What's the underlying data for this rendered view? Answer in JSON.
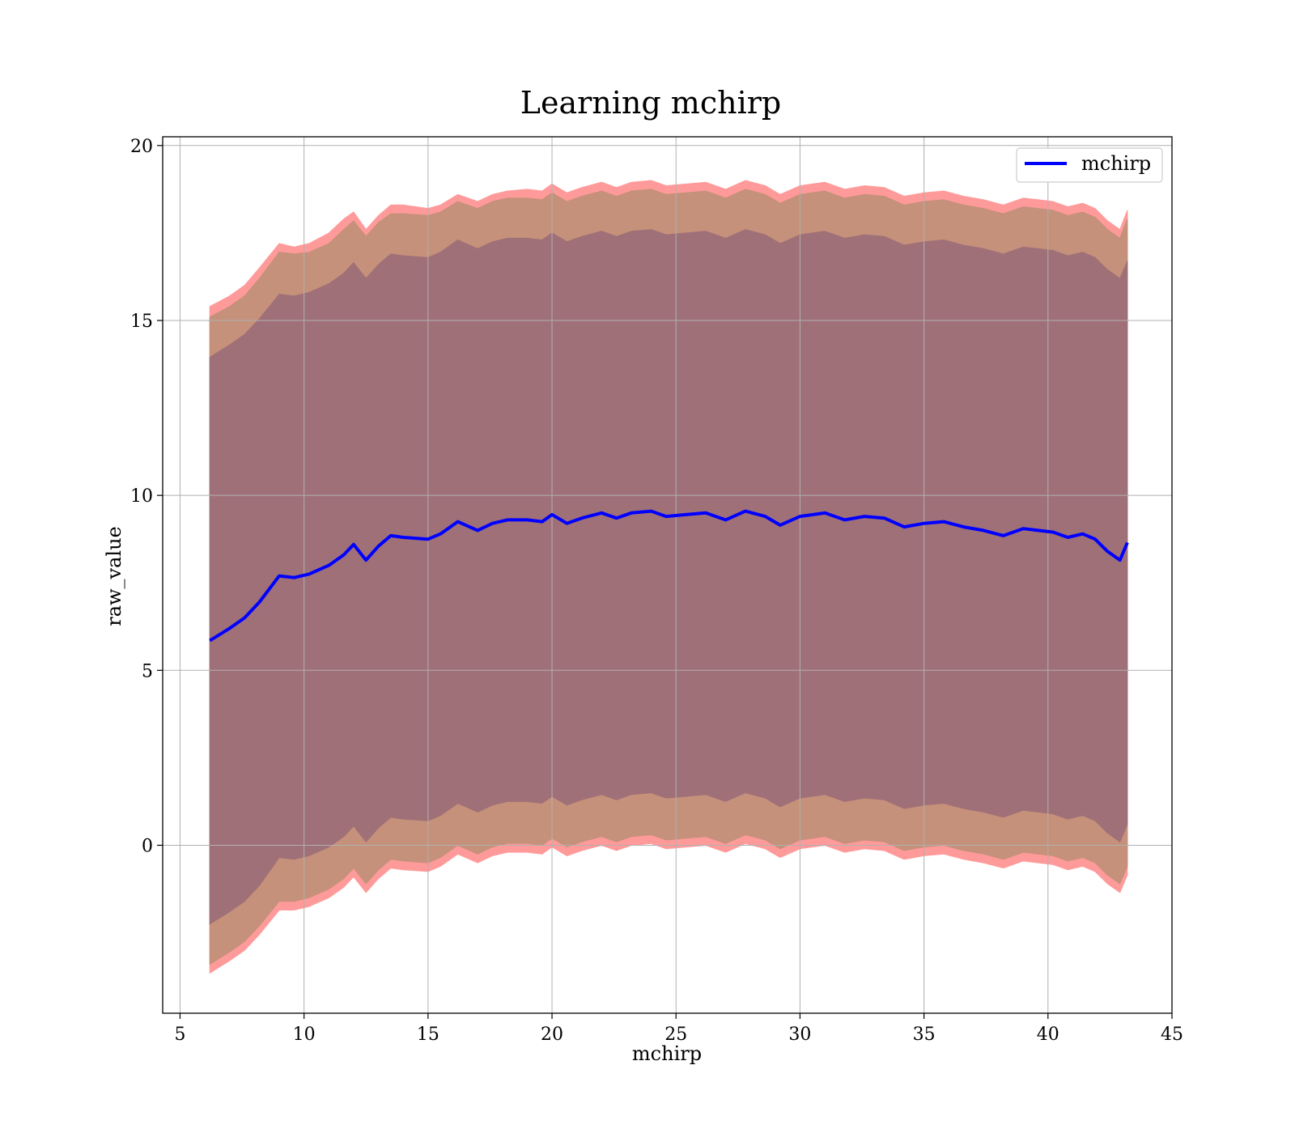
{
  "chart_data": {
    "type": "area",
    "title": "Learning mchirp",
    "xlabel": "mchirp",
    "ylabel": "raw_value",
    "xlim": [
      4.3,
      45
    ],
    "ylim": [
      -4.8,
      20.25
    ],
    "xticks": [
      5,
      10,
      15,
      20,
      25,
      30,
      35,
      40,
      45
    ],
    "yticks": [
      0,
      5,
      10,
      15,
      20
    ],
    "grid": true,
    "legend_position": "top-right",
    "colors": {
      "mean_line": "#0000ff",
      "band_outer": "#ff9a9a",
      "band_middle": "#c5917a",
      "band_inner": "#a07078"
    },
    "series": [
      {
        "name": "mchirp",
        "role": "mean",
        "x": [
          6.2,
          7.0,
          7.6,
          8.2,
          9.0,
          9.6,
          10.2,
          11.0,
          11.6,
          12.0,
          12.5,
          13.0,
          13.5,
          14.0,
          15.0,
          15.5,
          16.2,
          17.0,
          17.6,
          18.2,
          19.0,
          19.6,
          20.0,
          20.6,
          21.2,
          22.0,
          22.6,
          23.2,
          24.0,
          24.6,
          25.4,
          26.2,
          27.0,
          27.8,
          28.6,
          29.2,
          30.0,
          31.0,
          31.8,
          32.6,
          33.4,
          34.2,
          35.0,
          35.8,
          36.6,
          37.4,
          38.2,
          39.0,
          39.6,
          40.2,
          40.8,
          41.4,
          41.9,
          42.4,
          42.9,
          43.2
        ],
        "y": [
          5.85,
          6.2,
          6.5,
          6.95,
          7.7,
          7.65,
          7.75,
          8.0,
          8.3,
          8.6,
          8.15,
          8.55,
          8.85,
          8.8,
          8.75,
          8.9,
          9.25,
          9.0,
          9.2,
          9.3,
          9.3,
          9.25,
          9.45,
          9.2,
          9.35,
          9.5,
          9.35,
          9.5,
          9.55,
          9.4,
          9.45,
          9.5,
          9.3,
          9.55,
          9.4,
          9.15,
          9.4,
          9.5,
          9.3,
          9.4,
          9.35,
          9.1,
          9.2,
          9.25,
          9.1,
          9.0,
          8.85,
          9.05,
          9.0,
          8.95,
          8.8,
          8.9,
          8.75,
          8.4,
          8.15,
          8.65
        ]
      }
    ],
    "bands": [
      {
        "role": "outer",
        "x": [
          6.2,
          7.0,
          7.6,
          8.2,
          9.0,
          9.6,
          10.2,
          11.0,
          11.6,
          12.0,
          12.5,
          13.0,
          13.5,
          14.0,
          15.0,
          15.5,
          16.2,
          17.0,
          17.6,
          18.2,
          19.0,
          19.6,
          20.0,
          20.6,
          21.2,
          22.0,
          22.6,
          23.2,
          24.0,
          24.6,
          25.4,
          26.2,
          27.0,
          27.8,
          28.6,
          29.2,
          30.0,
          31.0,
          31.8,
          32.6,
          33.4,
          34.2,
          35.0,
          35.8,
          36.6,
          37.4,
          38.2,
          39.0,
          39.6,
          40.2,
          40.8,
          41.4,
          41.9,
          42.4,
          42.9,
          43.2
        ],
        "upper": [
          15.4,
          15.7,
          16.0,
          16.5,
          17.2,
          17.1,
          17.2,
          17.5,
          17.9,
          18.1,
          17.6,
          18.0,
          18.3,
          18.3,
          18.2,
          18.3,
          18.6,
          18.4,
          18.6,
          18.7,
          18.75,
          18.7,
          18.9,
          18.65,
          18.8,
          18.95,
          18.8,
          18.95,
          19.0,
          18.85,
          18.9,
          18.95,
          18.75,
          19.0,
          18.85,
          18.6,
          18.85,
          18.95,
          18.75,
          18.85,
          18.8,
          18.55,
          18.65,
          18.7,
          18.55,
          18.45,
          18.3,
          18.5,
          18.45,
          18.4,
          18.25,
          18.35,
          18.2,
          17.85,
          17.6,
          18.15
        ],
        "lower": [
          -3.65,
          -3.3,
          -3.0,
          -2.55,
          -1.85,
          -1.85,
          -1.75,
          -1.5,
          -1.2,
          -0.9,
          -1.35,
          -0.95,
          -0.65,
          -0.7,
          -0.75,
          -0.6,
          -0.25,
          -0.5,
          -0.3,
          -0.2,
          -0.2,
          -0.25,
          -0.05,
          -0.3,
          -0.15,
          0.0,
          -0.15,
          0.0,
          0.05,
          -0.1,
          -0.05,
          0.0,
          -0.2,
          0.05,
          -0.1,
          -0.35,
          -0.1,
          0.0,
          -0.2,
          -0.1,
          -0.15,
          -0.4,
          -0.3,
          -0.25,
          -0.4,
          -0.5,
          -0.65,
          -0.45,
          -0.5,
          -0.55,
          -0.7,
          -0.6,
          -0.75,
          -1.1,
          -1.35,
          -0.85
        ]
      },
      {
        "role": "middle",
        "x": [
          6.2,
          7.0,
          7.6,
          8.2,
          9.0,
          9.6,
          10.2,
          11.0,
          11.6,
          12.0,
          12.5,
          13.0,
          13.5,
          14.0,
          15.0,
          15.5,
          16.2,
          17.0,
          17.6,
          18.2,
          19.0,
          19.6,
          20.0,
          20.6,
          21.2,
          22.0,
          22.6,
          23.2,
          24.0,
          24.6,
          25.4,
          26.2,
          27.0,
          27.8,
          28.6,
          29.2,
          30.0,
          31.0,
          31.8,
          32.6,
          33.4,
          34.2,
          35.0,
          35.8,
          36.6,
          37.4,
          38.2,
          39.0,
          39.6,
          40.2,
          40.8,
          41.4,
          41.9,
          42.4,
          42.9,
          43.2
        ],
        "upper": [
          15.1,
          15.4,
          15.7,
          16.2,
          16.95,
          16.9,
          16.95,
          17.2,
          17.6,
          17.85,
          17.4,
          17.8,
          18.05,
          18.05,
          18.0,
          18.1,
          18.4,
          18.2,
          18.4,
          18.5,
          18.5,
          18.45,
          18.65,
          18.4,
          18.55,
          18.7,
          18.55,
          18.7,
          18.75,
          18.6,
          18.65,
          18.7,
          18.5,
          18.75,
          18.6,
          18.35,
          18.6,
          18.7,
          18.5,
          18.6,
          18.55,
          18.3,
          18.4,
          18.45,
          18.3,
          18.2,
          18.05,
          18.25,
          18.2,
          18.15,
          18.0,
          18.1,
          17.95,
          17.6,
          17.35,
          17.9
        ],
        "lower": [
          -3.4,
          -3.05,
          -2.75,
          -2.3,
          -1.6,
          -1.6,
          -1.5,
          -1.25,
          -0.95,
          -0.65,
          -1.1,
          -0.7,
          -0.4,
          -0.45,
          -0.5,
          -0.35,
          0.0,
          -0.25,
          -0.05,
          0.05,
          0.05,
          0.0,
          0.2,
          -0.05,
          0.1,
          0.25,
          0.1,
          0.25,
          0.3,
          0.15,
          0.2,
          0.25,
          0.05,
          0.3,
          0.15,
          -0.1,
          0.15,
          0.25,
          0.05,
          0.15,
          0.1,
          -0.15,
          -0.05,
          0.0,
          -0.15,
          -0.25,
          -0.4,
          -0.2,
          -0.25,
          -0.3,
          -0.45,
          -0.35,
          -0.5,
          -0.85,
          -1.1,
          -0.6
        ]
      },
      {
        "role": "inner",
        "x": [
          6.2,
          7.0,
          7.6,
          8.2,
          9.0,
          9.6,
          10.2,
          11.0,
          11.6,
          12.0,
          12.5,
          13.0,
          13.5,
          14.0,
          15.0,
          15.5,
          16.2,
          17.0,
          17.6,
          18.2,
          19.0,
          19.6,
          20.0,
          20.6,
          21.2,
          22.0,
          22.6,
          23.2,
          24.0,
          24.6,
          25.4,
          26.2,
          27.0,
          27.8,
          28.6,
          29.2,
          30.0,
          31.0,
          31.8,
          32.6,
          33.4,
          34.2,
          35.0,
          35.8,
          36.6,
          37.4,
          38.2,
          39.0,
          39.6,
          40.2,
          40.8,
          41.4,
          41.9,
          42.4,
          42.9,
          43.2
        ],
        "upper": [
          13.95,
          14.3,
          14.6,
          15.05,
          15.75,
          15.7,
          15.8,
          16.05,
          16.35,
          16.65,
          16.2,
          16.6,
          16.9,
          16.85,
          16.8,
          16.95,
          17.3,
          17.05,
          17.25,
          17.35,
          17.35,
          17.3,
          17.5,
          17.25,
          17.4,
          17.55,
          17.4,
          17.55,
          17.6,
          17.45,
          17.5,
          17.55,
          17.35,
          17.6,
          17.45,
          17.2,
          17.45,
          17.55,
          17.35,
          17.45,
          17.4,
          17.15,
          17.25,
          17.3,
          17.15,
          17.05,
          16.9,
          17.1,
          17.05,
          17.0,
          16.85,
          16.95,
          16.8,
          16.45,
          16.2,
          16.7
        ],
        "lower": [
          -2.25,
          -1.9,
          -1.6,
          -1.15,
          -0.35,
          -0.4,
          -0.3,
          -0.05,
          0.25,
          0.55,
          0.1,
          0.5,
          0.8,
          0.75,
          0.7,
          0.85,
          1.2,
          0.95,
          1.15,
          1.25,
          1.25,
          1.2,
          1.4,
          1.15,
          1.3,
          1.45,
          1.3,
          1.45,
          1.5,
          1.35,
          1.4,
          1.45,
          1.25,
          1.5,
          1.35,
          1.1,
          1.35,
          1.45,
          1.25,
          1.35,
          1.3,
          1.05,
          1.15,
          1.2,
          1.05,
          0.95,
          0.8,
          1.0,
          0.95,
          0.9,
          0.75,
          0.85,
          0.7,
          0.35,
          0.1,
          0.6
        ]
      }
    ]
  }
}
